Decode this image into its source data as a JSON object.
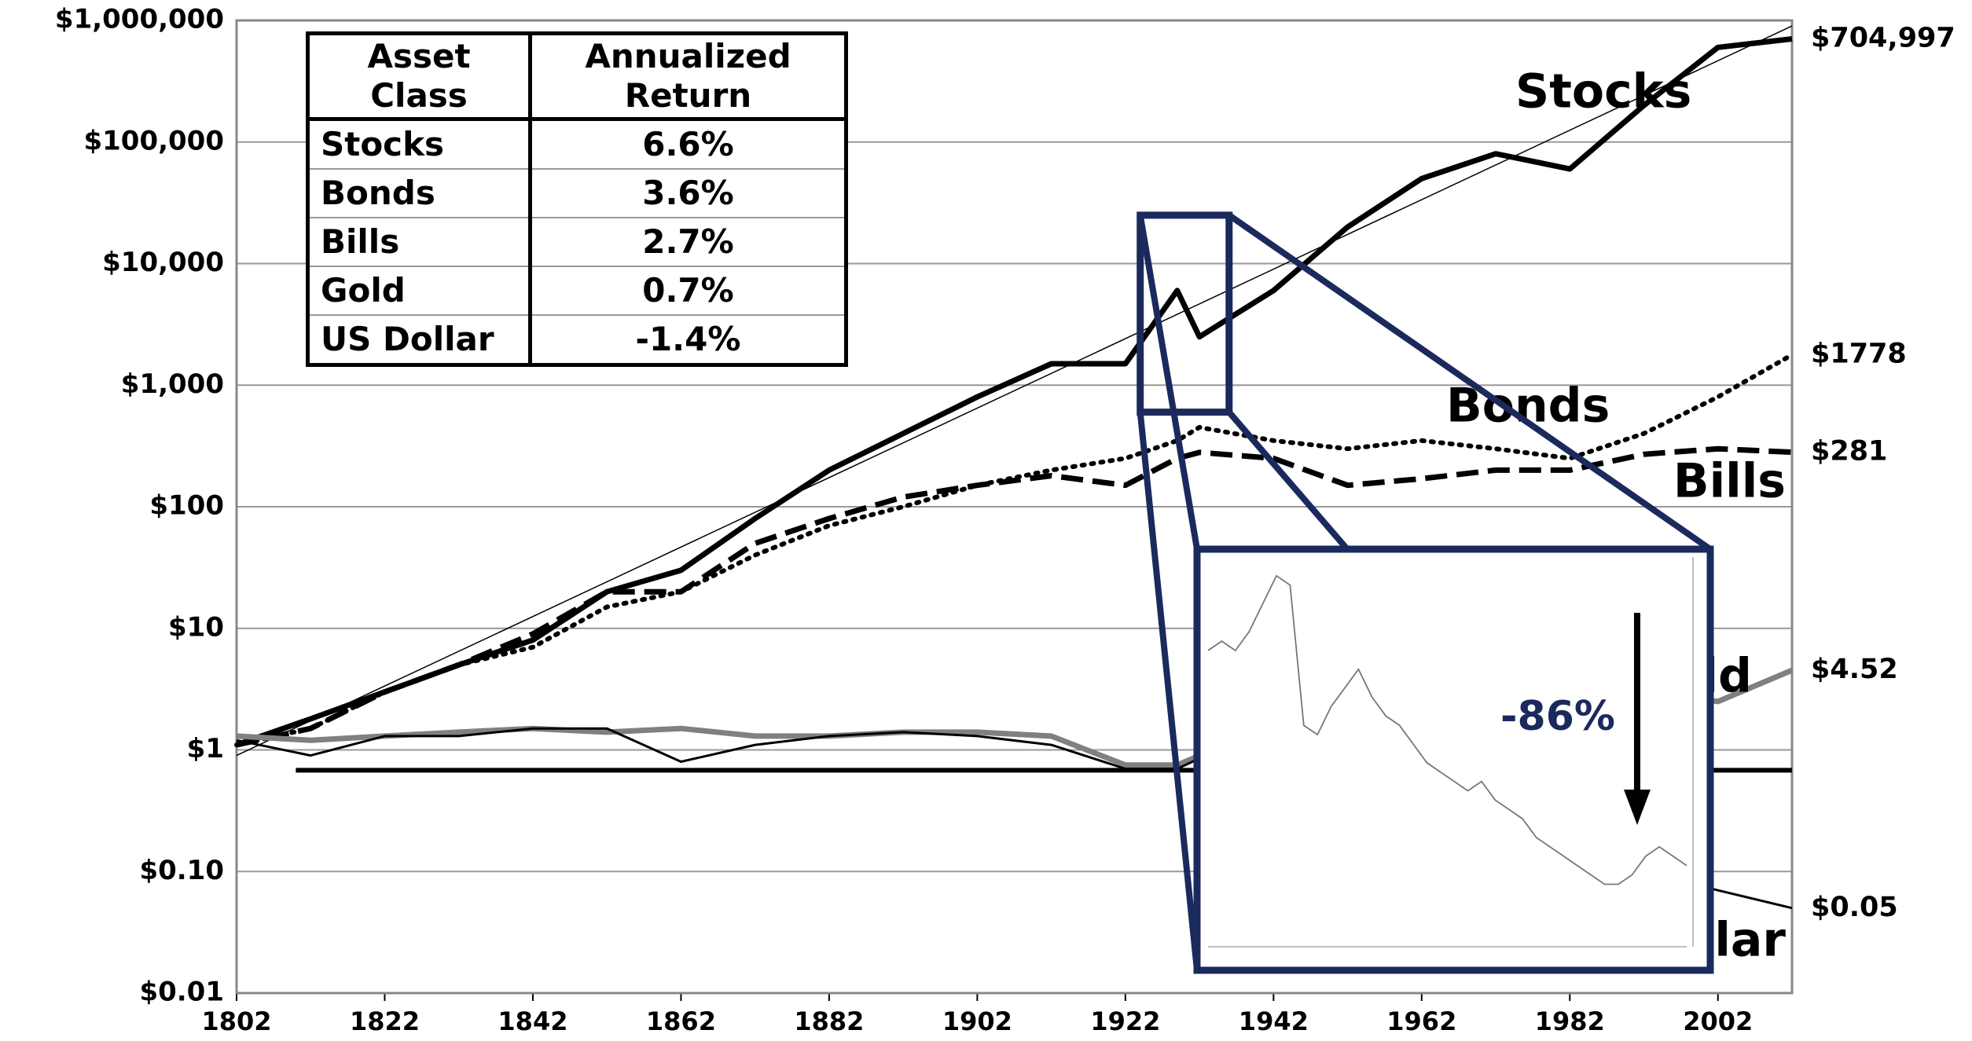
{
  "chart_data": {
    "type": "line",
    "log_y": true,
    "grid": true,
    "x": [
      1802,
      1812,
      1822,
      1832,
      1842,
      1852,
      1862,
      1872,
      1882,
      1892,
      1902,
      1912,
      1922,
      1929,
      1932,
      1942,
      1952,
      1962,
      1972,
      1982,
      1992,
      2002,
      2012
    ],
    "xlim": [
      1802,
      2012
    ],
    "xticks": [
      1802,
      1822,
      1842,
      1862,
      1882,
      1902,
      1922,
      1942,
      1962,
      1982,
      2002
    ],
    "ylim": [
      0.01,
      1000000
    ],
    "yticks": [
      {
        "value": 0.01,
        "label": "$0.01"
      },
      {
        "value": 0.1,
        "label": "$0.10"
      },
      {
        "value": 1,
        "label": "$1"
      },
      {
        "value": 10,
        "label": "$10"
      },
      {
        "value": 100,
        "label": "$100"
      },
      {
        "value": 1000,
        "label": "$1,000"
      },
      {
        "value": 10000,
        "label": "$10,000"
      },
      {
        "value": 100000,
        "label": "$100,000"
      },
      {
        "value": 1000000,
        "label": "$1,000,000"
      }
    ],
    "series": [
      {
        "name": "Stocks",
        "color": "#000000",
        "style": "solid",
        "end_label": "$704,997",
        "values": [
          1.1,
          1.8,
          3,
          5,
          8,
          20,
          30,
          80,
          200,
          400,
          800,
          1500,
          1500,
          6000,
          2500,
          6000,
          20000,
          50000,
          80000,
          60000,
          200000,
          600000,
          704997
        ]
      },
      {
        "name": "Bonds",
        "color": "#000000",
        "style": "dotted",
        "end_label": "$1778",
        "values": [
          1.1,
          1.5,
          3,
          5,
          7,
          15,
          20,
          40,
          70,
          100,
          150,
          200,
          250,
          350,
          450,
          350,
          300,
          350,
          300,
          250,
          400,
          800,
          1778
        ]
      },
      {
        "name": "Bills",
        "color": "#000000",
        "style": "dashed",
        "end_label": "$281",
        "values": [
          1.1,
          1.5,
          3,
          5,
          9,
          20,
          20,
          50,
          80,
          120,
          150,
          180,
          150,
          250,
          280,
          250,
          150,
          170,
          200,
          200,
          270,
          300,
          281
        ]
      },
      {
        "name": "Gold",
        "color": "#808080",
        "style": "solid",
        "end_label": "$4.52",
        "values": [
          1.3,
          1.2,
          1.3,
          1.4,
          1.5,
          1.4,
          1.5,
          1.3,
          1.3,
          1.4,
          1.4,
          1.3,
          0.75,
          0.75,
          0.9,
          1.0,
          1.0,
          1.0,
          2,
          5,
          3,
          2.5,
          4.52
        ]
      },
      {
        "name": "Dollar",
        "color": "#000000",
        "style": "thin",
        "end_label": "$0.05",
        "values": [
          1.2,
          0.9,
          1.3,
          1.3,
          1.5,
          1.5,
          0.8,
          1.1,
          1.3,
          1.4,
          1.3,
          1.1,
          0.7,
          0.7,
          0.85,
          0.6,
          0.5,
          0.4,
          0.3,
          0.15,
          0.1,
          0.07,
          0.05
        ]
      }
    ],
    "trend": {
      "values": [
        0.9,
        900000
      ]
    },
    "hline": {
      "value": 0.68,
      "xrange": [
        1810,
        2012
      ]
    },
    "table": {
      "columns": [
        "Asset Class",
        "Annualized Return"
      ],
      "rows": [
        [
          "Stocks",
          "6.6%"
        ],
        [
          "Bonds",
          "3.6%"
        ],
        [
          "Bills",
          "2.7%"
        ],
        [
          "Gold",
          "0.7%"
        ],
        [
          "US Dollar",
          "-1.4%"
        ]
      ]
    },
    "inset": {
      "annotation": "-86%",
      "ylim": [
        0,
        40
      ],
      "zoom_x": [
        1924,
        1936
      ],
      "zoom_y": [
        600,
        25000
      ],
      "values": [
        30,
        31,
        30,
        32,
        35,
        38,
        37,
        22,
        21,
        24,
        26,
        28,
        25,
        23,
        22,
        20,
        18,
        17,
        16,
        15,
        16,
        14,
        13,
        12,
        10,
        9,
        8,
        7,
        6,
        5,
        5,
        6,
        8,
        9,
        8,
        7
      ]
    }
  }
}
